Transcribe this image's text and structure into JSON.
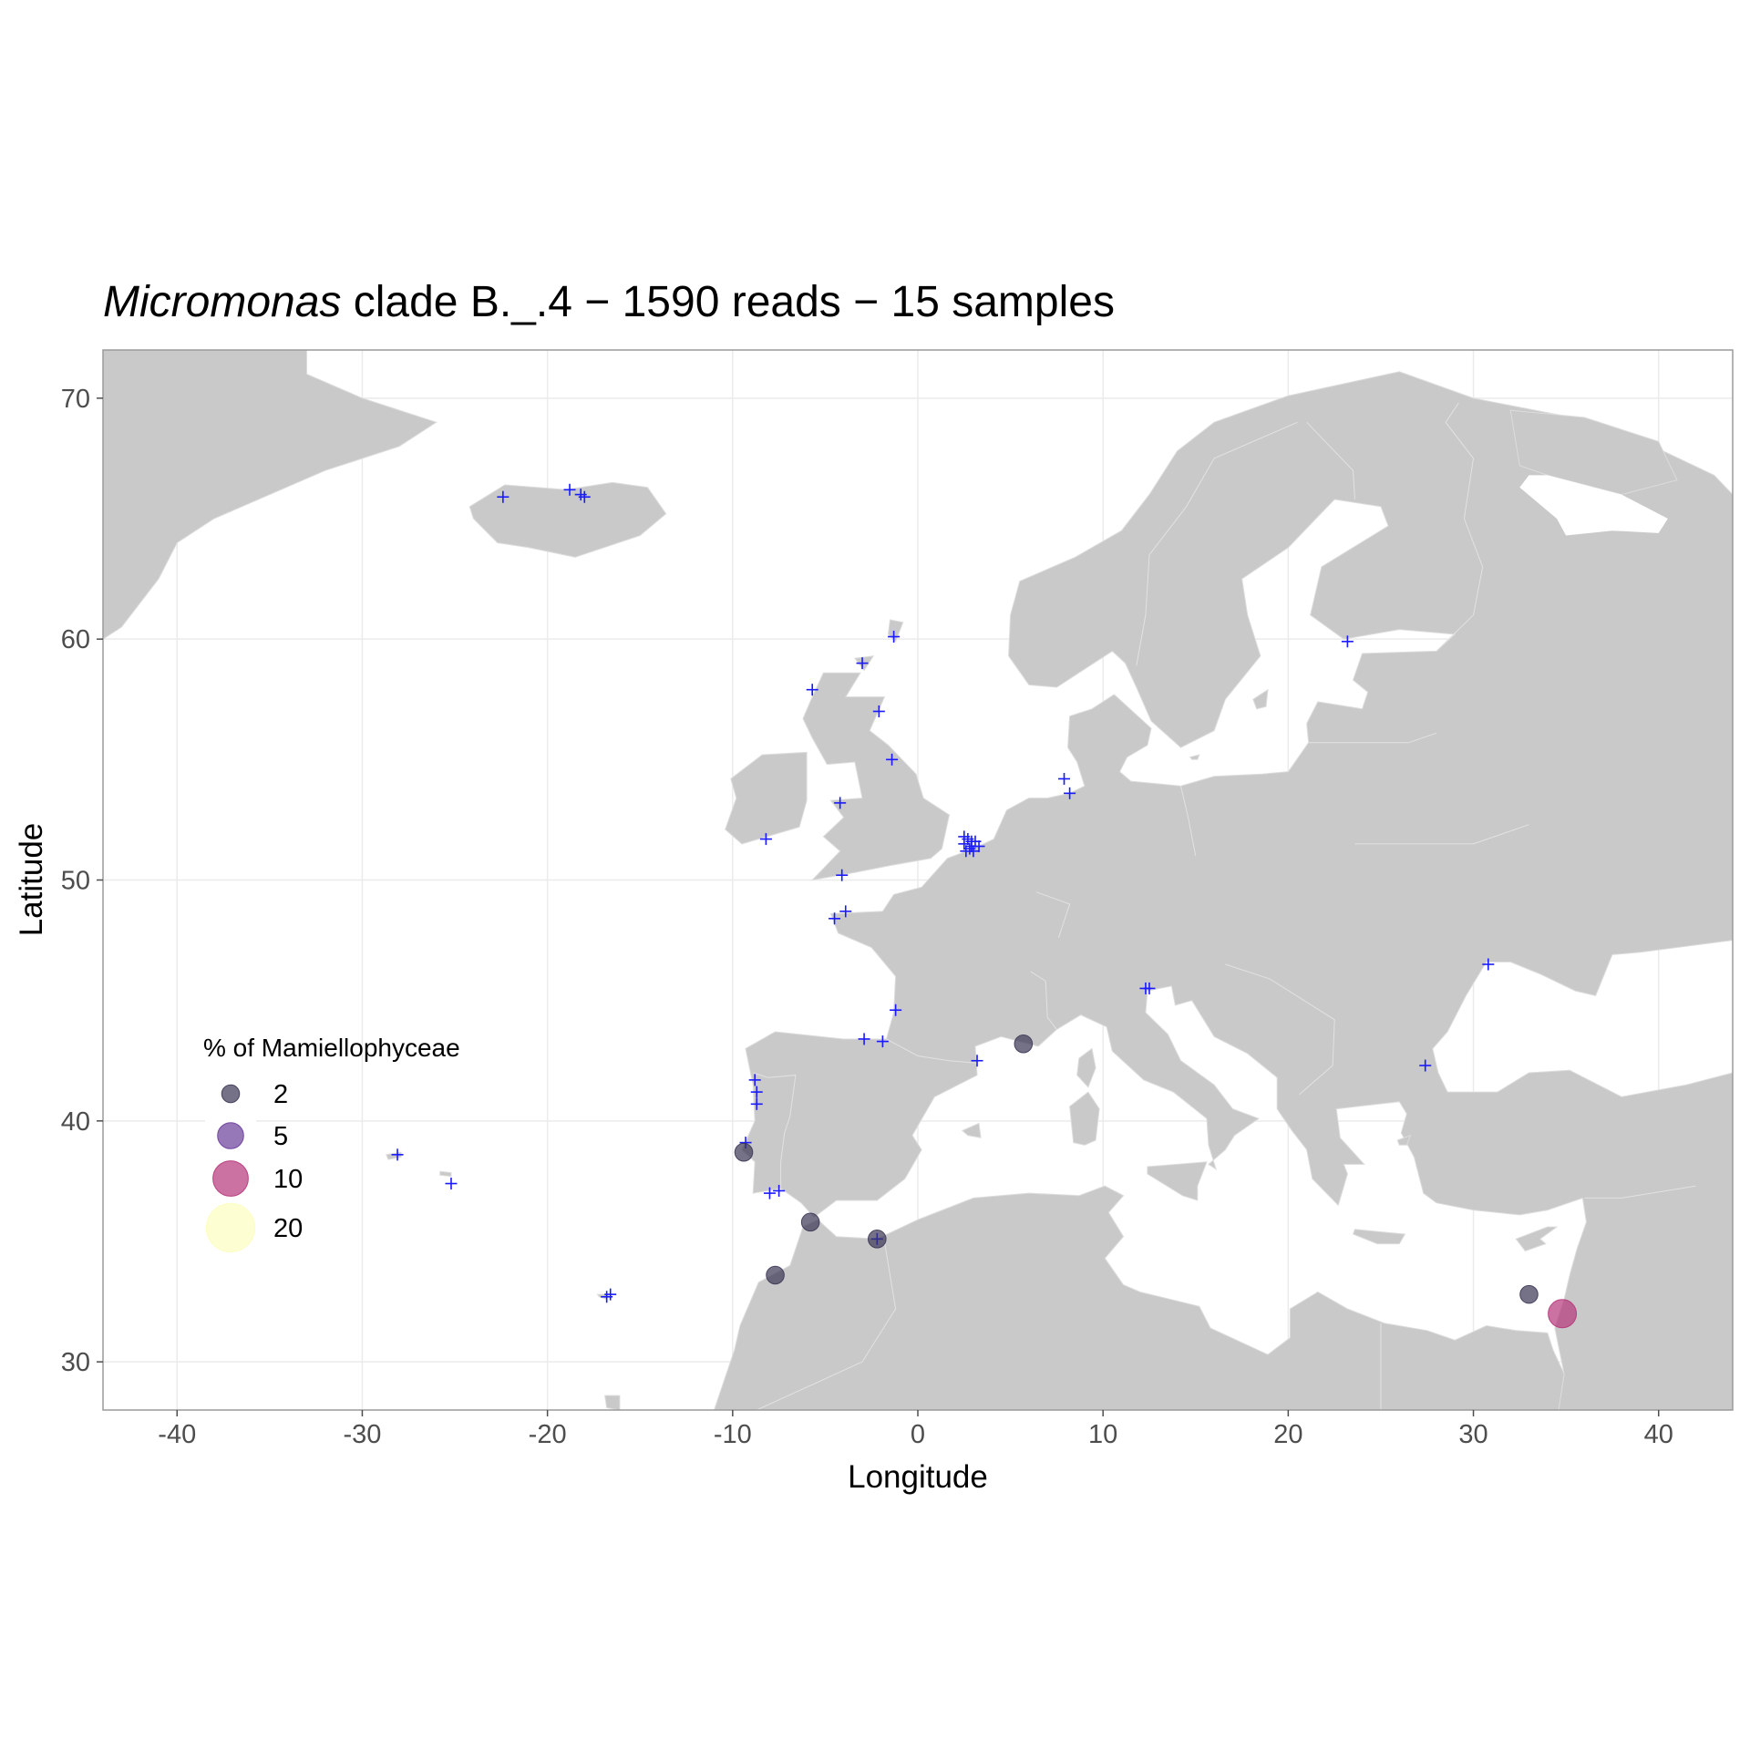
{
  "chart_data": {
    "type": "scatter",
    "title_italic": "Micromonas",
    "title_rest": " clade B._.4 − 1590 reads − 15 samples",
    "xlabel": "Longitude",
    "ylabel": "Latitude",
    "xlim": [
      -44,
      44
    ],
    "ylim": [
      28,
      72
    ],
    "x_ticks": [
      -40,
      -30,
      -20,
      -10,
      0,
      10,
      20,
      30,
      40
    ],
    "y_ticks": [
      30,
      40,
      50,
      60,
      70
    ],
    "grid": true,
    "legend_placement": "left",
    "legend": {
      "title": "% of Mamiellophyceae",
      "entries": [
        {
          "label": "2",
          "value": 2,
          "color": "#3b3654"
        },
        {
          "label": "5",
          "value": 5,
          "color": "#6a3d9a"
        },
        {
          "label": "10",
          "value": 10,
          "color": "#b5367a"
        },
        {
          "label": "20",
          "value": 20,
          "color": "#fcfdbf"
        }
      ]
    },
    "colors": {
      "land": "#c9c9c9",
      "sea": "#ffffff",
      "panel_border": "#9a9a9a",
      "station_marker": "#1a1aff"
    },
    "samples": [
      {
        "lon": 5.7,
        "lat": 43.2,
        "pct": 2
      },
      {
        "lon": -9.4,
        "lat": 38.7,
        "pct": 2
      },
      {
        "lon": -5.8,
        "lat": 35.8,
        "pct": 2
      },
      {
        "lon": -2.2,
        "lat": 35.1,
        "pct": 2
      },
      {
        "lon": -7.7,
        "lat": 33.6,
        "pct": 2
      },
      {
        "lon": 33.0,
        "lat": 32.8,
        "pct": 2
      },
      {
        "lon": 34.8,
        "lat": 32.0,
        "pct": 6
      }
    ],
    "stations": [
      [
        -22.4,
        65.9
      ],
      [
        -18.8,
        66.2
      ],
      [
        -18.2,
        66.0
      ],
      [
        -18.0,
        65.9
      ],
      [
        -28.1,
        38.6
      ],
      [
        -25.2,
        37.4
      ],
      [
        -16.8,
        32.7
      ],
      [
        -16.6,
        32.8
      ],
      [
        -1.3,
        60.1
      ],
      [
        -3.0,
        59.0
      ],
      [
        -5.7,
        57.9
      ],
      [
        -2.1,
        57.0
      ],
      [
        -1.4,
        55.0
      ],
      [
        -4.2,
        53.2
      ],
      [
        -8.2,
        51.7
      ],
      [
        -4.1,
        50.2
      ],
      [
        -3.9,
        48.7
      ],
      [
        -4.5,
        48.4
      ],
      [
        7.9,
        54.2
      ],
      [
        8.2,
        53.6
      ],
      [
        2.5,
        51.5
      ],
      [
        2.7,
        51.7
      ],
      [
        2.9,
        51.4
      ],
      [
        3.1,
        51.6
      ],
      [
        2.6,
        51.2
      ],
      [
        2.8,
        51.3
      ],
      [
        3.3,
        51.4
      ],
      [
        2.5,
        51.8
      ],
      [
        2.9,
        51.6
      ],
      [
        3.0,
        51.2
      ],
      [
        -1.2,
        44.6
      ],
      [
        -2.9,
        43.4
      ],
      [
        -1.9,
        43.3
      ],
      [
        3.2,
        42.5
      ],
      [
        -8.8,
        41.7
      ],
      [
        -8.7,
        41.2
      ],
      [
        -8.7,
        40.7
      ],
      [
        -9.3,
        39.1
      ],
      [
        -8.0,
        37.0
      ],
      [
        -7.5,
        37.1
      ],
      [
        -2.2,
        35.1
      ],
      [
        12.3,
        45.5
      ],
      [
        12.5,
        45.5
      ],
      [
        23.2,
        59.9
      ],
      [
        30.8,
        46.5
      ],
      [
        27.4,
        42.3
      ]
    ]
  }
}
